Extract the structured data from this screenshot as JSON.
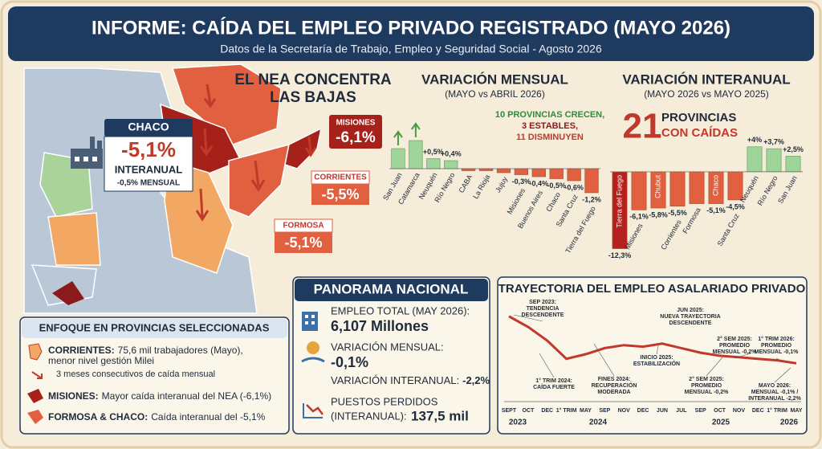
{
  "header": {
    "title": "INFORME: CAÍDA DEL EMPLEO PRIVADO REGISTRADO (MAYO 2026)",
    "subtitle": "Datos de la Secretaría de Trabajo, Empleo y Seguridad Social - Agosto 2026"
  },
  "map": {
    "headline": [
      "EL NEA CONCENTRA",
      "LAS BAJAS"
    ],
    "callouts": [
      {
        "name": "CHACO",
        "value": "-5,1%",
        "label": "INTERANUAL",
        "note": "-0,5% MENSUAL"
      },
      {
        "name": "MISIONES",
        "value": "-6,1%"
      },
      {
        "name": "CORRIENTES",
        "value": "-5,5%"
      },
      {
        "name": "FORMOSA",
        "value": "-5,1%"
      }
    ]
  },
  "chart_data": [
    {
      "type": "bar",
      "title": "VARIACIÓN MENSUAL",
      "subtitle": "(MAYO vs ABRIL 2026)",
      "notes": [
        "10 PROVINCIAS CRECEN,",
        "3 ESTABLES,",
        "11 DISMINUYEN"
      ],
      "note_colors": [
        "#2e8b3a",
        "#8b1a1a",
        "#c0392b"
      ],
      "categories": [
        "San Juan",
        "Catamarca",
        "Neuquén",
        "Río Negro",
        "CABA",
        "La Rioja",
        "Jujuy",
        "Misiones",
        "Buenos Aires",
        "Chaco",
        "Santa Cruz",
        "Tierra del Fuego"
      ],
      "values": [
        1.0,
        1.4,
        0.5,
        0.4,
        -0.1,
        -0.1,
        -0.2,
        -0.3,
        -0.4,
        -0.5,
        -0.6,
        -1.2
      ],
      "value_labels": [
        null,
        null,
        "+0,5%",
        "+0,4%",
        null,
        null,
        null,
        "-0,3%",
        "-0,4%",
        "-0,5%",
        "-0,6%",
        "-1,2%"
      ],
      "colors": {
        "positive": "#9fd49a",
        "negative": "#e0603f"
      },
      "ylim": [
        -1.6,
        1.6
      ]
    },
    {
      "type": "bar",
      "title": "VARIACIÓN INTERANUAL",
      "subtitle": "(MAYO 2026 vs MAYO 2025)",
      "headline": "21",
      "headline_text": [
        "PROVINCIAS",
        "CON CAÍDAS"
      ],
      "categories": [
        "Tierra del Fuego",
        "Misiones",
        "Chubut",
        "Corrientes",
        "Formosa",
        "Chaco",
        "Santa Cruz",
        "Neuquén",
        "Río Negro",
        "San Juan"
      ],
      "values": [
        -12.3,
        -6.1,
        -5.8,
        -5.5,
        -5.1,
        -5.1,
        -4.5,
        4,
        3.7,
        2.5
      ],
      "value_labels": [
        "-12,3%",
        "-6,1%",
        "-5,8%",
        "-5,5%",
        null,
        "-5,1%",
        "-4,5%",
        "+4%",
        "+3,7%",
        "+2,5%"
      ],
      "colors": {
        "positive": "#9fd49a",
        "negative": "#e0603f",
        "strongest": "#b5211c"
      },
      "ylim": [
        -13,
        5
      ]
    },
    {
      "type": "line",
      "title": "TRAYECTORIA DEL EMPLEO ASALARIADO PRIVADO",
      "categories": [
        "SEPT",
        "OCT",
        "DEC",
        "1° TRIM",
        "MAY",
        "SEP",
        "NOV",
        "DEC",
        "JUN",
        "JUL",
        "SEP",
        "OCT",
        "NOV",
        "DEC",
        "1° TRIM",
        "MAY"
      ],
      "years": [
        "2023",
        "2024",
        "2025",
        "2026"
      ],
      "values": [
        100,
        99.3,
        98.4,
        97.2,
        97.5,
        97.9,
        98.1,
        98.0,
        98.2,
        97.9,
        97.6,
        97.4,
        97.3,
        97.2,
        97.1,
        96.9
      ],
      "color": "#c0392b",
      "ylim": [
        96.6,
        100.2
      ],
      "annotations": [
        [
          "SEP 2023:",
          "TENDENCIA",
          "DESCENDENTE"
        ],
        [
          "1° TRIM 2024:",
          "CAÍDA FUERTE"
        ],
        [
          "FINES 2024:",
          "RECUPERACIÓN",
          "MODERADA"
        ],
        [
          "INICIO 2025:",
          "ESTABILIZACIÓN"
        ],
        [
          "JUN 2025:",
          "NUEVA TRAYECTORIA",
          "DESCENDENTE"
        ],
        [
          "2° SEM 2025:",
          "PROMEDIO",
          "MENSUAL -0,2%"
        ],
        [
          "2° SEM 2025:",
          "PROMEDIO",
          "MENSUAL -0,2%"
        ],
        [
          "1° TRIM 2026:",
          "PROMEDIO",
          "MENSUAL -0,1%"
        ],
        [
          "MAYO 2026:",
          "MENSUAL -0,1% /",
          "INTERANUAL -2,2%"
        ]
      ]
    }
  ],
  "panorama": {
    "title": "PANORAMA NACIONAL",
    "items": [
      {
        "label": [
          "EMPLEO TOTAL (MAY 2026):"
        ],
        "value": "6,107 Millones"
      },
      {
        "label": [
          "VARIACIÓN MENSUAL:"
        ],
        "value": "-0,1%"
      },
      {
        "label": [
          "VARIACIÓN INTERANUAL:"
        ],
        "value": "-2,2%"
      },
      {
        "label": [
          "PUESTOS PERDIDOS",
          "(INTERANUAL):"
        ],
        "value": "137,5 mil"
      }
    ]
  },
  "focus": {
    "title": "ENFOQUE EN PROVINCIAS SELECCIONADAS",
    "items": [
      {
        "label": "CORRIENTES:",
        "text": [
          "75,6 mil trabajadores (Mayo),",
          "menor nivel gestión Milei"
        ],
        "sub": "3 meses consecutivos de caída mensual"
      },
      {
        "label": "MISIONES:",
        "text": [
          "Mayor caída interanual del NEA (-6,1%)"
        ]
      },
      {
        "label": "FORMOSA & CHACO:",
        "text": [
          "Caída interanual del -5,1%"
        ]
      }
    ]
  }
}
